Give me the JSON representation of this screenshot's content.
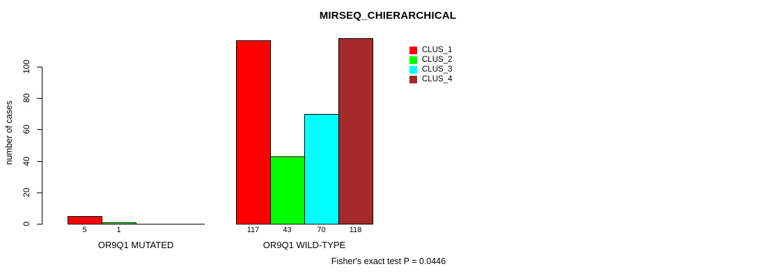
{
  "title": "MIRSEQ_CHIERARCHICAL",
  "ylabel": "number of cases",
  "footnote": "Fisher's exact test P = 0.0446",
  "colors": {
    "clus_1": "#FF0000",
    "clus_2": "#00FF00",
    "clus_3": "#00FFFF",
    "clus_4": "#A52A2A",
    "axis": "#000000",
    "background": "#FFFFFF"
  },
  "chart_data": {
    "type": "bar",
    "title": "MIRSEQ_CHIERARCHICAL",
    "xlabel": "",
    "ylabel": "number of cases",
    "categories": [
      "OR9Q1 MUTATED",
      "OR9Q1 WILD-TYPE"
    ],
    "series": [
      {
        "name": "CLUS_1",
        "color": "#FF0000",
        "values": [
          5,
          117
        ]
      },
      {
        "name": "CLUS_2",
        "color": "#00FF00",
        "values": [
          1,
          43
        ]
      },
      {
        "name": "CLUS_3",
        "color": "#00FFFF",
        "values": [
          0,
          70
        ]
      },
      {
        "name": "CLUS_4",
        "color": "#A52A2A",
        "values": [
          0,
          118
        ]
      }
    ],
    "bar_value_labels": {
      "OR9Q1 MUTATED": [
        "5",
        "1",
        "",
        ""
      ],
      "OR9Q1 WILD-TYPE": [
        "117",
        "43",
        "70",
        "118"
      ]
    },
    "yticks": [
      0,
      20,
      40,
      60,
      80,
      100
    ],
    "ylim": [
      0,
      118
    ],
    "axis_scale_max": 100,
    "grid": false,
    "legend_position": "top-right",
    "legend_entries": [
      "CLUS_1",
      "CLUS_2",
      "CLUS_3",
      "CLUS_4"
    ],
    "annotation": "Fisher's exact test P = 0.0446"
  }
}
